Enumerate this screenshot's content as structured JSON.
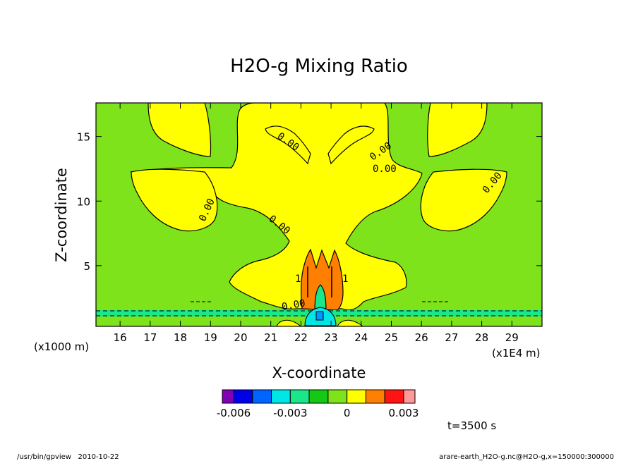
{
  "colors": {
    "green": "#7fe31b",
    "yellow": "#ffff00",
    "orange": "#ff8000",
    "teal": "#1ae68a",
    "darkgreen": "#14c814",
    "cyan": "#00e6e6",
    "blue": "#0096ff",
    "deepblue": "#0000e6"
  },
  "chart_data": {
    "type": "contour",
    "title": "H2O-g Mixing Ratio",
    "xlabel": "X-coordinate",
    "ylabel": "Z-coordinate",
    "x_unit_label": "(x1E4 m)",
    "y_unit_label": "(x1000 m)",
    "xlim": [
      15.2,
      30.0
    ],
    "ylim": [
      0.3,
      17.6
    ],
    "x_ticks": [
      16,
      17,
      18,
      19,
      20,
      21,
      22,
      23,
      24,
      25,
      26,
      27,
      28,
      29
    ],
    "y_ticks": [
      5,
      10,
      15
    ],
    "x_tick_labels": [
      "16",
      "17",
      "18",
      "19",
      "20",
      "21",
      "22",
      "23",
      "24",
      "25",
      "26",
      "27",
      "28",
      "29"
    ],
    "y_tick_labels": [
      "5",
      "10",
      "15"
    ],
    "contour_labels": [
      "0.00",
      "0.00",
      "0.00",
      "0.00",
      "0.00",
      "0.00",
      "0.00",
      "1",
      "1"
    ],
    "colorbar": {
      "colors": [
        "#8000b4",
        "#0000e6",
        "#0064ff",
        "#00e6e6",
        "#1ae68a",
        "#14c814",
        "#7fe31b",
        "#ffff00",
        "#ff8000",
        "#ff1414",
        "#ff9999"
      ],
      "tick_labels": [
        "-0.006",
        "-0.003",
        "0",
        "0.003"
      ],
      "tick_values": [
        -0.006,
        -0.003,
        0,
        0.003
      ]
    },
    "time_label": "t=3500 s"
  },
  "footer": {
    "left": "/usr/bin/gpview   2010-10-22",
    "right": "arare-earth_H2O-g.nc@H2O-g,x=150000:300000"
  }
}
